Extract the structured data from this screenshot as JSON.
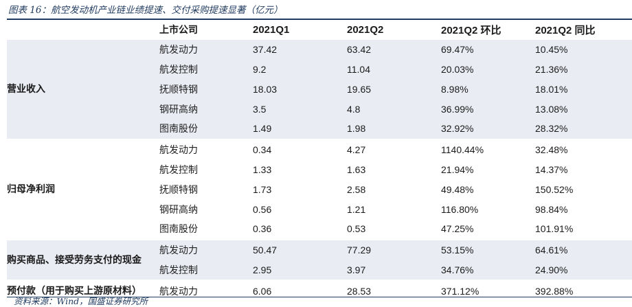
{
  "figure_title": "图表 16：航空发动机产业链业绩提速、交付采购提速显著（亿元）",
  "headers": {
    "group": "",
    "company": "上市公司",
    "q1": "2021Q1",
    "q2": "2021Q2",
    "qoq": "2021Q2 环比",
    "yoy": "2021Q2 同比"
  },
  "groups": [
    {
      "name": "营业收入",
      "rows": [
        {
          "company": "航发动力",
          "q1": "37.42",
          "q2": "63.42",
          "qoq": "69.47%",
          "yoy": "10.45%"
        },
        {
          "company": "航发控制",
          "q1": "9.2",
          "q2": "11.04",
          "qoq": "20.03%",
          "yoy": "21.36%"
        },
        {
          "company": "抚顺特钢",
          "q1": "18.03",
          "q2": "19.65",
          "qoq": "8.98%",
          "yoy": "18.01%"
        },
        {
          "company": "钢研高纳",
          "q1": "3.5",
          "q2": "4.8",
          "qoq": "36.99%",
          "yoy": "13.08%"
        },
        {
          "company": "图南股份",
          "q1": "1.49",
          "q2": "1.98",
          "qoq": "32.92%",
          "yoy": "28.32%"
        }
      ]
    },
    {
      "name": "归母净利润",
      "rows": [
        {
          "company": "航发动力",
          "q1": "0.34",
          "q2": "4.27",
          "qoq": "1140.44%",
          "yoy": "32.48%"
        },
        {
          "company": "航发控制",
          "q1": "1.33",
          "q2": "1.63",
          "qoq": "21.94%",
          "yoy": "14.37%"
        },
        {
          "company": "抚顺特钢",
          "q1": "1.73",
          "q2": "2.58",
          "qoq": "49.48%",
          "yoy": "150.52%"
        },
        {
          "company": "钢研高纳",
          "q1": "0.56",
          "q2": "1.21",
          "qoq": "116.80%",
          "yoy": "98.84%"
        },
        {
          "company": "图南股份",
          "q1": "0.36",
          "q2": "0.53",
          "qoq": "47.25%",
          "yoy": "101.91%"
        }
      ]
    },
    {
      "name": "购买商品、接受劳务支付的现金",
      "rows": [
        {
          "company": "航发动力",
          "q1": "50.47",
          "q2": "77.29",
          "qoq": "53.15%",
          "yoy": "64.61%"
        },
        {
          "company": "航发控制",
          "q1": "2.95",
          "q2": "3.97",
          "qoq": "34.76%",
          "yoy": "24.90%"
        }
      ]
    },
    {
      "name": "预付款（用于购买上游原材料）",
      "rows": [
        {
          "company": "航发动力",
          "q1": "6.06",
          "q2": "28.53",
          "qoq": "371.12%",
          "yoy": "392.88%"
        }
      ]
    }
  ],
  "source": "资料来源：Wind，国盛证券研究所"
}
